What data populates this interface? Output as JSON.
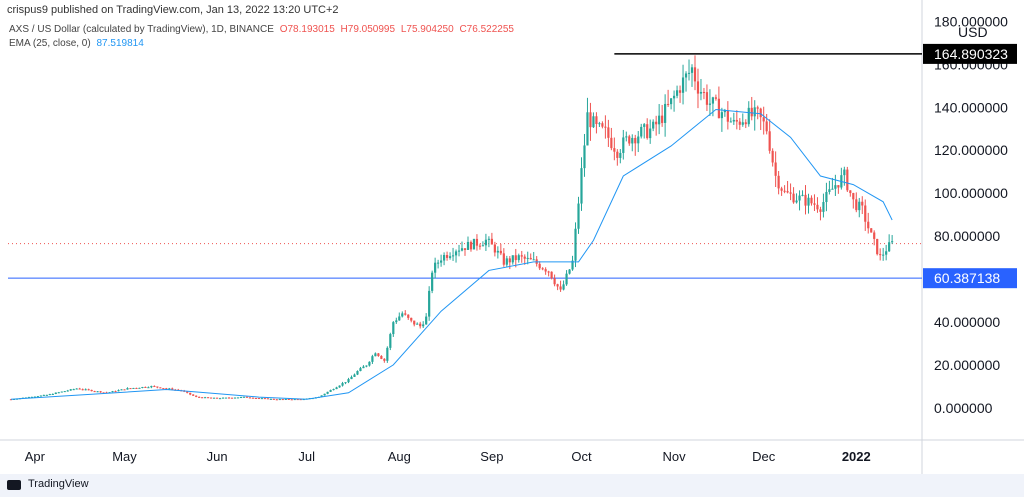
{
  "header": {
    "publisher": "crispus9 published on TradingView.com, Jan 13, 2022 13:20 UTC+2"
  },
  "legend": {
    "symbol": "AXS / US Dollar (calculated by TradingView), 1D, BINANCE",
    "open": "O78.193015",
    "high": "H79.050995",
    "low": "L75.904250",
    "close": "C76.522255",
    "ema_label": "EMA (25, close, 0)",
    "ema_value": "87.519814"
  },
  "footer": {
    "brand": "TradingView"
  },
  "colors": {
    "up": "#26a69a",
    "down": "#ef5350",
    "ema": "#2196f3",
    "support": "#2962ff",
    "resistance": "#000000"
  },
  "chart_data": {
    "type": "candlestick",
    "currency": "USD",
    "y_tick_labels": [
      "0.000000",
      "20.000000",
      "40.000000",
      "60.000000",
      "80.000000",
      "100.000000",
      "120.000000",
      "140.000000",
      "160.000000",
      "180.000000"
    ],
    "y_ticks": [
      0,
      20,
      40,
      60,
      80,
      100,
      120,
      140,
      160,
      180
    ],
    "ylim": [
      -15,
      190
    ],
    "x_tick_labels": [
      "Apr",
      "May",
      "Jun",
      "Jul",
      "Aug",
      "Sep",
      "Oct",
      "Nov",
      "Dec",
      "2022"
    ],
    "x_ticks": [
      "2021-04-01",
      "2021-05-01",
      "2021-06-01",
      "2021-07-01",
      "2021-08-01",
      "2021-09-01",
      "2021-10-01",
      "2021-11-01",
      "2021-12-01",
      "2022-01-01"
    ],
    "xlim": [
      "2021-03-23",
      "2022-01-23"
    ],
    "horizontal_lines": [
      {
        "label": "164.890323",
        "value": 164.89,
        "color": "#000000",
        "from": "2021-10-12"
      },
      {
        "label": "60.387138",
        "value": 60.39,
        "color": "#2962ff",
        "from": "2021-03-23"
      }
    ],
    "last_price": 76.52,
    "series": [
      {
        "name": "AXS / US Dollar",
        "points": [
          [
            "2021-03-24",
            4
          ],
          [
            "2021-04-05",
            6
          ],
          [
            "2021-04-15",
            9
          ],
          [
            "2021-04-25",
            7
          ],
          [
            "2021-05-02",
            9
          ],
          [
            "2021-05-10",
            10
          ],
          [
            "2021-05-20",
            8
          ],
          [
            "2021-05-25",
            5
          ],
          [
            "2021-06-01",
            4.5
          ],
          [
            "2021-06-10",
            5
          ],
          [
            "2021-06-20",
            4
          ],
          [
            "2021-06-30",
            4
          ],
          [
            "2021-07-05",
            5
          ],
          [
            "2021-07-10",
            9
          ],
          [
            "2021-07-15",
            13
          ],
          [
            "2021-07-18",
            17
          ],
          [
            "2021-07-21",
            20
          ],
          [
            "2021-07-24",
            26
          ],
          [
            "2021-07-27",
            22
          ],
          [
            "2021-07-30",
            40
          ],
          [
            "2021-08-02",
            44
          ],
          [
            "2021-08-05",
            40
          ],
          [
            "2021-08-08",
            38
          ],
          [
            "2021-08-10",
            42
          ],
          [
            "2021-08-12",
            64
          ],
          [
            "2021-08-15",
            70
          ],
          [
            "2021-08-20",
            74
          ],
          [
            "2021-08-25",
            76
          ],
          [
            "2021-08-30",
            78
          ],
          [
            "2021-09-02",
            74
          ],
          [
            "2021-09-05",
            68
          ],
          [
            "2021-09-10",
            70
          ],
          [
            "2021-09-15",
            68
          ],
          [
            "2021-09-20",
            64
          ],
          [
            "2021-09-24",
            54
          ],
          [
            "2021-09-28",
            68
          ],
          [
            "2021-10-01",
            110
          ],
          [
            "2021-10-03",
            136
          ],
          [
            "2021-10-06",
            130
          ],
          [
            "2021-10-09",
            128
          ],
          [
            "2021-10-13",
            120
          ],
          [
            "2021-10-17",
            126
          ],
          [
            "2021-10-21",
            128
          ],
          [
            "2021-10-25",
            130
          ],
          [
            "2021-10-28",
            136
          ],
          [
            "2021-10-31",
            142
          ],
          [
            "2021-11-03",
            150
          ],
          [
            "2021-11-07",
            158
          ],
          [
            "2021-11-09",
            150
          ],
          [
            "2021-11-13",
            142
          ],
          [
            "2021-11-17",
            138
          ],
          [
            "2021-11-21",
            132
          ],
          [
            "2021-11-25",
            136
          ],
          [
            "2021-11-29",
            136
          ],
          [
            "2021-12-02",
            130
          ],
          [
            "2021-12-05",
            108
          ],
          [
            "2021-12-08",
            100
          ],
          [
            "2021-12-12",
            98
          ],
          [
            "2021-12-16",
            96
          ],
          [
            "2021-12-20",
            94
          ],
          [
            "2021-12-25",
            104
          ],
          [
            "2021-12-28",
            108
          ],
          [
            "2021-12-31",
            96
          ],
          [
            "2022-01-03",
            92
          ],
          [
            "2022-01-06",
            80
          ],
          [
            "2022-01-09",
            70
          ],
          [
            "2022-01-11",
            74
          ],
          [
            "2022-01-13",
            76.5
          ]
        ]
      },
      {
        "name": "EMA (25, close, 0)",
        "points": [
          [
            "2021-03-24",
            4
          ],
          [
            "2021-05-15",
            8.5
          ],
          [
            "2021-06-15",
            5
          ],
          [
            "2021-07-01",
            4
          ],
          [
            "2021-07-15",
            7
          ],
          [
            "2021-07-30",
            20
          ],
          [
            "2021-08-15",
            45
          ],
          [
            "2021-08-31",
            64
          ],
          [
            "2021-09-15",
            68
          ],
          [
            "2021-09-30",
            68
          ],
          [
            "2021-10-05",
            78
          ],
          [
            "2021-10-15",
            108
          ],
          [
            "2021-10-31",
            122
          ],
          [
            "2021-11-15",
            139
          ],
          [
            "2021-11-30",
            137
          ],
          [
            "2021-12-10",
            126
          ],
          [
            "2021-12-20",
            108
          ],
          [
            "2021-12-31",
            104
          ],
          [
            "2022-01-10",
            96
          ],
          [
            "2022-01-13",
            87.5
          ]
        ]
      }
    ]
  }
}
